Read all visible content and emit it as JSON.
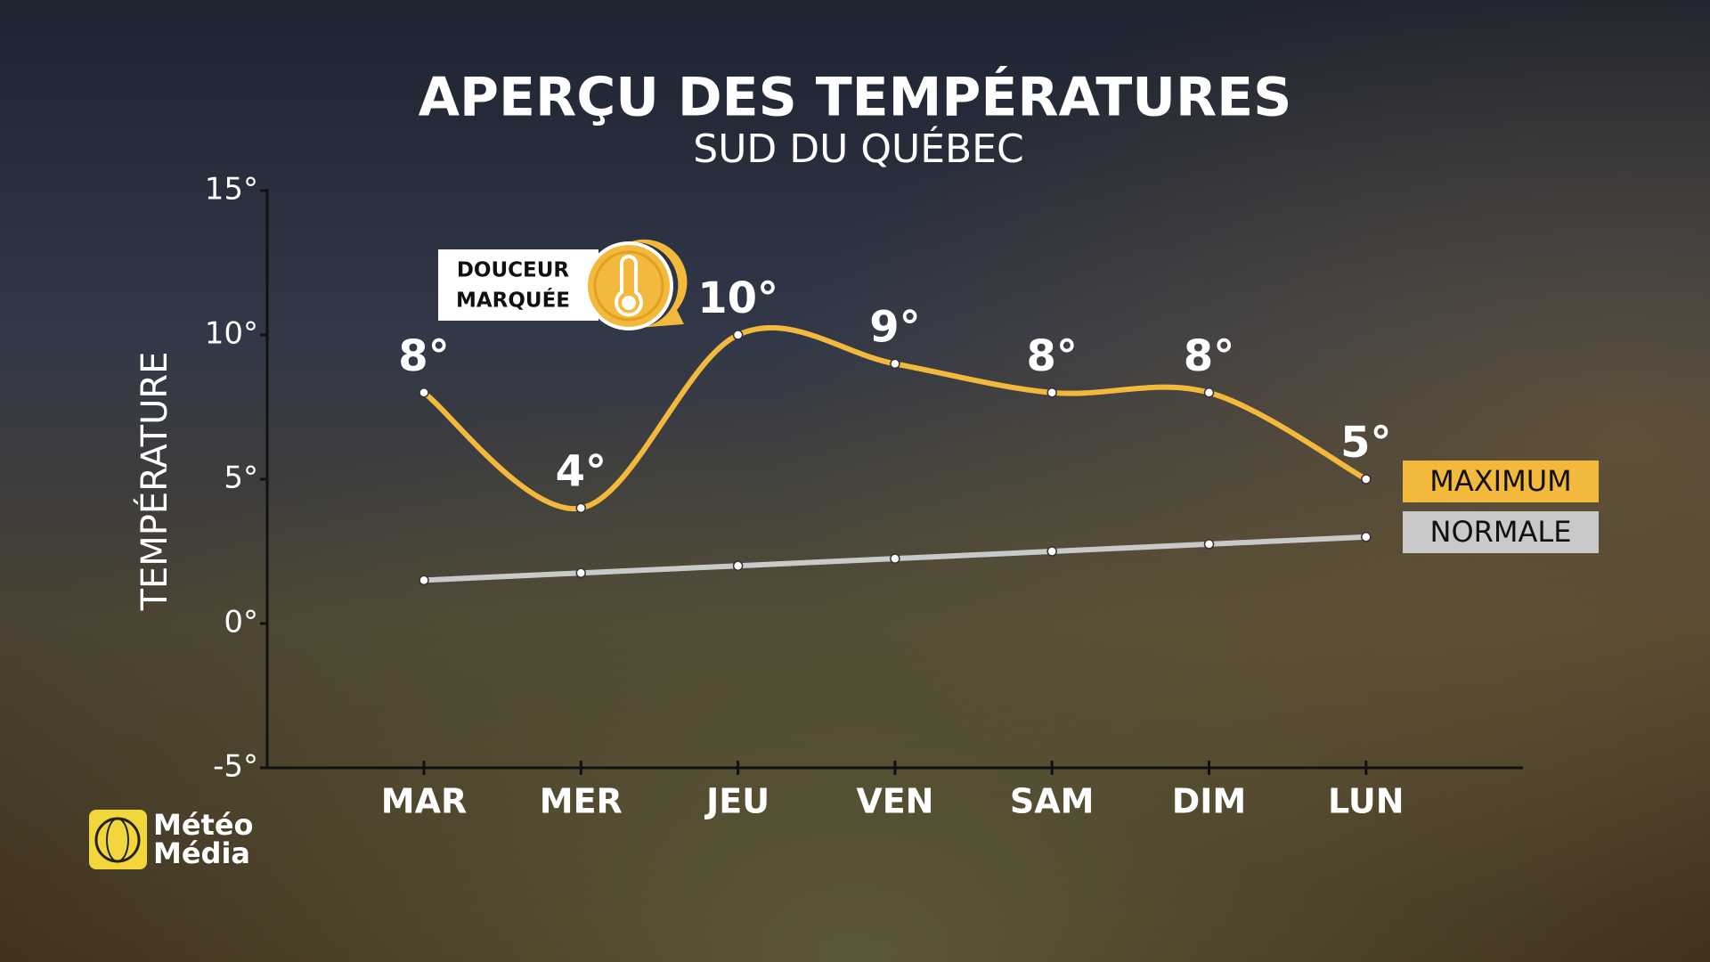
{
  "chart_data": {
    "type": "line",
    "title": "APERÇU DES TEMPÉRATURES",
    "subtitle": "SUD DU QUÉBEC",
    "y_label": "TEMPÉRATURE",
    "annotation": [
      "DOUCEUR",
      "MARQUÉE"
    ],
    "logo": [
      "Météo",
      "Média"
    ],
    "categories": [
      "MAR",
      "MER",
      "JEU",
      "VEN",
      "SAM",
      "DIM",
      "LUN"
    ],
    "series": [
      {
        "name": "MAXIMUM",
        "color": "#f3b93c",
        "values": [
          8,
          4,
          10,
          9,
          8,
          8,
          5
        ],
        "value_labels": [
          "8°",
          "4°",
          "10°",
          "9°",
          "8°",
          "8°",
          "5°"
        ]
      },
      {
        "name": "NORMALE",
        "color": "#c9c9c9",
        "values": [
          1.5,
          1.75,
          2,
          2.25,
          2.5,
          2.75,
          3
        ]
      }
    ],
    "ylim": [
      -5,
      15
    ],
    "yticks": [
      {
        "value": -5,
        "label": "-5°"
      },
      {
        "value": 0,
        "label": "0°"
      },
      {
        "value": 5,
        "label": "5°"
      },
      {
        "value": 10,
        "label": "10°"
      },
      {
        "value": 15,
        "label": "15°"
      }
    ],
    "smooth": true
  }
}
